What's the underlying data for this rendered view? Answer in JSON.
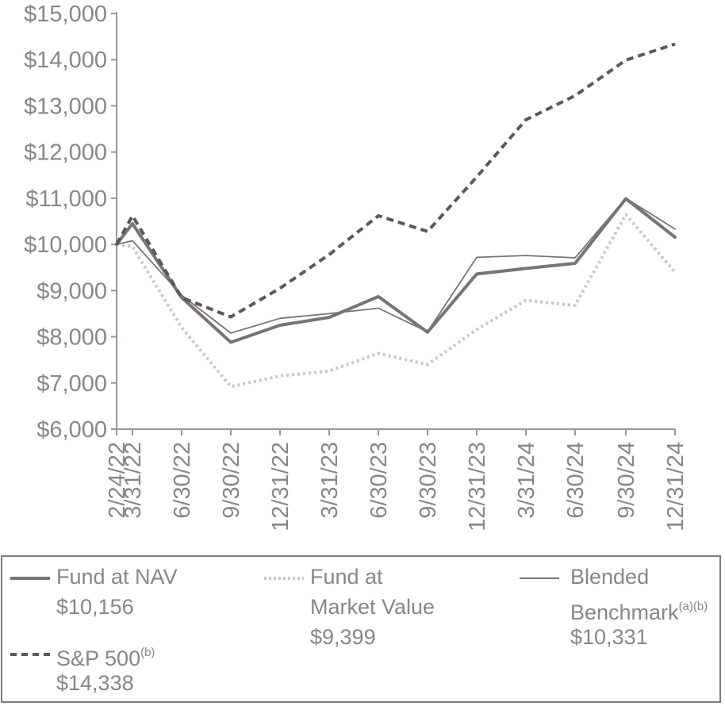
{
  "chart_data": {
    "type": "line",
    "x": [
      "2/24/22",
      "3/31/22",
      "6/30/22",
      "9/30/22",
      "12/31/22",
      "3/31/23",
      "6/30/23",
      "9/30/23",
      "12/31/23",
      "3/31/24",
      "6/30/24",
      "9/30/24",
      "12/31/24"
    ],
    "y_ticks": [
      "$6,000",
      "$7,000",
      "$8,000",
      "$9,000",
      "$10,000",
      "$11,000",
      "$12,000",
      "$13,000",
      "$14,000",
      "$15,000"
    ],
    "ylim": [
      6000,
      15000
    ],
    "series": [
      {
        "name": "Fund at NAV",
        "style": "thick-solid",
        "color": "#7a7471",
        "values": [
          10000,
          10450,
          8850,
          7880,
          8250,
          8420,
          8870,
          8100,
          9360,
          9480,
          9590,
          10990,
          10156
        ]
      },
      {
        "name": "Fund at Market Value",
        "style": "dotted",
        "color": "#c9c7c5",
        "values": [
          10000,
          9950,
          8200,
          6920,
          7150,
          7260,
          7640,
          7400,
          8160,
          8790,
          8680,
          10650,
          9399
        ]
      },
      {
        "name": "Blended Benchmark",
        "style": "thin-solid",
        "color": "#7a7471",
        "values": [
          10000,
          10080,
          8900,
          8080,
          8400,
          8500,
          8620,
          8110,
          9720,
          9760,
          9710,
          11000,
          10331
        ]
      },
      {
        "name": "S&P 500",
        "style": "dashed",
        "color": "#5d5855",
        "values": [
          10000,
          10620,
          8850,
          8430,
          9050,
          9780,
          10620,
          10280,
          11460,
          12700,
          13220,
          13990,
          14338
        ]
      }
    ]
  },
  "legend": [
    {
      "label_lines": [
        "Fund at NAV"
      ],
      "sup": "",
      "value": "$10,156"
    },
    {
      "label_lines": [
        "Fund at",
        "Market Value"
      ],
      "sup": "",
      "value": "$9,399"
    },
    {
      "label_lines": [
        "Blended",
        "Benchmark"
      ],
      "sup": "(a)(b)",
      "value": "$10,331"
    },
    {
      "label_lines": [
        "S&P 500"
      ],
      "sup": "(b)",
      "value": "$14,338"
    }
  ]
}
